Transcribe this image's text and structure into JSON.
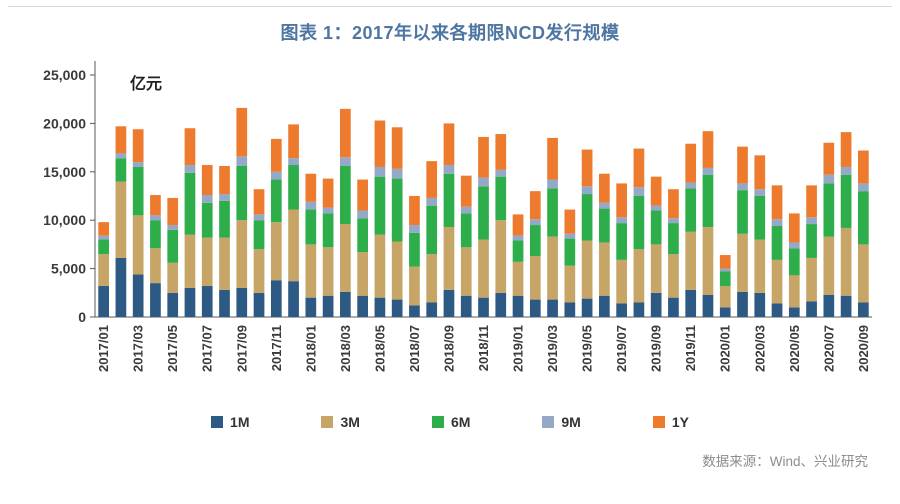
{
  "header": {
    "title": "图表 1：2017年以来各期限NCD发行规模"
  },
  "footer": {
    "source": "数据来源：Wind、兴业研究"
  },
  "chart_data": {
    "type": "bar",
    "stacked": true,
    "title": "图表 1：2017年以来各期限NCD发行规模",
    "unit_label": "亿元",
    "xlabel": "",
    "ylabel": "亿元",
    "ylim": [
      0,
      25000
    ],
    "y_ticks": [
      0,
      5000,
      10000,
      15000,
      20000,
      25000
    ],
    "y_tick_labels": [
      "0",
      "5,000",
      "10,000",
      "15,000",
      "20,000",
      "25,000"
    ],
    "grid": false,
    "legend_position": "bottom",
    "x_label_every": 2,
    "categories": [
      "2017/01",
      "2017/02",
      "2017/03",
      "2017/04",
      "2017/05",
      "2017/06",
      "2017/07",
      "2017/08",
      "2017/09",
      "2017/10",
      "2017/11",
      "2017/12",
      "2018/01",
      "2018/02",
      "2018/03",
      "2018/04",
      "2018/05",
      "2018/06",
      "2018/07",
      "2018/08",
      "2018/09",
      "2018/10",
      "2018/11",
      "2018/12",
      "2019/01",
      "2019/02",
      "2019/03",
      "2019/04",
      "2019/05",
      "2019/06",
      "2019/07",
      "2019/08",
      "2019/09",
      "2019/10",
      "2019/11",
      "2019/12",
      "2020/01",
      "2020/02",
      "2020/03",
      "2020/04",
      "2020/05",
      "2020/06",
      "2020/07",
      "2020/08",
      "2020/09"
    ],
    "series": [
      {
        "name": "1M",
        "color": "#2d5a84",
        "values": [
          3200,
          6100,
          4400,
          3500,
          2500,
          3000,
          3200,
          2800,
          3000,
          2500,
          3800,
          3700,
          2000,
          2200,
          2600,
          2200,
          2000,
          1800,
          1200,
          1500,
          2800,
          2200,
          2000,
          2500,
          2200,
          1800,
          1800,
          1500,
          1900,
          2200,
          1400,
          1500,
          2500,
          2000,
          2800,
          2300,
          1000,
          2600,
          2500,
          1400,
          1000,
          1600,
          2300,
          2200,
          1500
        ]
      },
      {
        "name": "3M",
        "color": "#c7a567",
        "values": [
          3300,
          7900,
          6100,
          3600,
          3100,
          5500,
          5000,
          5400,
          7000,
          4500,
          6000,
          7400,
          5500,
          5000,
          7000,
          4500,
          6500,
          6000,
          4000,
          5000,
          6500,
          5000,
          6000,
          7500,
          3500,
          4500,
          6500,
          3800,
          6000,
          5500,
          4500,
          5500,
          5000,
          4500,
          6000,
          7000,
          2200,
          6000,
          5500,
          4500,
          3300,
          4500,
          6000,
          7000,
          6000
        ]
      },
      {
        "name": "6M",
        "color": "#2ead4b",
        "values": [
          1500,
          2400,
          5000,
          2900,
          3400,
          6400,
          3600,
          3800,
          5600,
          3000,
          4400,
          4600,
          3600,
          3500,
          6000,
          3500,
          6000,
          6500,
          3500,
          5000,
          5500,
          3500,
          5500,
          4500,
          2200,
          3200,
          5000,
          2800,
          4800,
          3500,
          3800,
          5500,
          3500,
          3200,
          4500,
          5400,
          1500,
          4500,
          4500,
          3500,
          2800,
          3500,
          5500,
          5500,
          5500
        ]
      },
      {
        "name": "9M",
        "color": "#94a9c8",
        "values": [
          400,
          500,
          500,
          500,
          500,
          800,
          800,
          700,
          1000,
          600,
          800,
          700,
          800,
          600,
          900,
          800,
          1000,
          1000,
          800,
          800,
          900,
          700,
          900,
          700,
          500,
          600,
          900,
          500,
          800,
          600,
          600,
          900,
          500,
          500,
          600,
          700,
          300,
          700,
          700,
          700,
          600,
          700,
          900,
          800,
          800
        ]
      },
      {
        "name": "1Y",
        "color": "#ee7b2d",
        "values": [
          1400,
          2800,
          3400,
          2100,
          2800,
          3800,
          3100,
          2900,
          5000,
          2600,
          3400,
          3500,
          2900,
          3000,
          5000,
          3200,
          4800,
          4300,
          3000,
          3800,
          4300,
          3200,
          4200,
          3700,
          2200,
          2900,
          4300,
          2500,
          3800,
          3000,
          3500,
          4000,
          3000,
          3000,
          4000,
          3800,
          1400,
          3800,
          3500,
          3500,
          3000,
          3300,
          3300,
          3600,
          3400
        ]
      }
    ]
  }
}
